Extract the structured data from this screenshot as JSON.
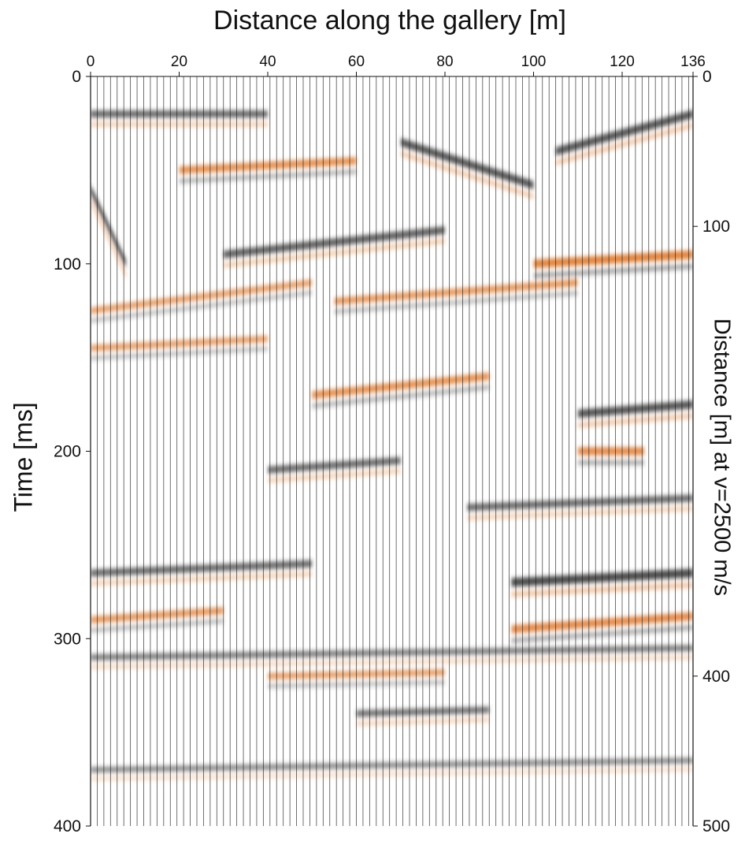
{
  "chart_data": {
    "type": "heatmap",
    "subtype": "seismic wiggle section (variable area, orange/grey)",
    "title": "",
    "xlabel": "Distance along the gallery [m]",
    "ylabel": "Time [ms]",
    "y2label": "Distance [m] at v=2500 m/s",
    "xlim": [
      0,
      136
    ],
    "ylim": [
      0,
      400
    ],
    "y2lim": [
      0,
      500
    ],
    "x_ticks": [
      "0",
      "20",
      "40",
      "60",
      "80",
      "100",
      "120",
      "136"
    ],
    "x_tick_values": [
      0,
      20,
      40,
      60,
      80,
      100,
      120,
      136
    ],
    "y_ticks": [
      "0",
      "100",
      "200",
      "300",
      "400"
    ],
    "y_tick_values": [
      0,
      100,
      200,
      300,
      400
    ],
    "y2_ticks": [
      "0",
      "100",
      "400",
      "500"
    ],
    "y2_tick_values": [
      0,
      100,
      400,
      500
    ],
    "trace_spacing_m": 1.5,
    "colors": {
      "positive": "#e07a2e",
      "negative": "#3a3a3a",
      "trace_line": "#111111",
      "background": "#ffffff"
    },
    "reflectors": [
      {
        "x0": 0,
        "x1": 40,
        "t0": 20,
        "t1": 20,
        "polarity": "negative",
        "strength": 0.7
      },
      {
        "x0": 20,
        "x1": 60,
        "t0": 50,
        "t1": 45,
        "polarity": "positive",
        "strength": 0.8
      },
      {
        "x0": 70,
        "x1": 100,
        "t0": 35,
        "t1": 58,
        "polarity": "negative",
        "strength": 0.9
      },
      {
        "x0": 105,
        "x1": 136,
        "t0": 40,
        "t1": 20,
        "polarity": "negative",
        "strength": 0.9
      },
      {
        "x0": 0,
        "x1": 8,
        "t0": 60,
        "t1": 100,
        "polarity": "negative",
        "strength": 1.0
      },
      {
        "x0": 30,
        "x1": 80,
        "t0": 95,
        "t1": 82,
        "polarity": "negative",
        "strength": 0.8
      },
      {
        "x0": 100,
        "x1": 136,
        "t0": 100,
        "t1": 95,
        "polarity": "positive",
        "strength": 1.0
      },
      {
        "x0": 0,
        "x1": 50,
        "t0": 125,
        "t1": 110,
        "polarity": "positive",
        "strength": 0.6
      },
      {
        "x0": 55,
        "x1": 110,
        "t0": 120,
        "t1": 110,
        "polarity": "positive",
        "strength": 0.7
      },
      {
        "x0": 0,
        "x1": 40,
        "t0": 145,
        "t1": 140,
        "polarity": "positive",
        "strength": 0.6
      },
      {
        "x0": 50,
        "x1": 90,
        "t0": 170,
        "t1": 160,
        "polarity": "positive",
        "strength": 0.8
      },
      {
        "x0": 110,
        "x1": 136,
        "t0": 180,
        "t1": 175,
        "polarity": "negative",
        "strength": 0.9
      },
      {
        "x0": 40,
        "x1": 70,
        "t0": 210,
        "t1": 205,
        "polarity": "negative",
        "strength": 0.7
      },
      {
        "x0": 110,
        "x1": 125,
        "t0": 200,
        "t1": 200,
        "polarity": "positive",
        "strength": 0.9
      },
      {
        "x0": 85,
        "x1": 136,
        "t0": 230,
        "t1": 225,
        "polarity": "negative",
        "strength": 0.7
      },
      {
        "x0": 0,
        "x1": 50,
        "t0": 265,
        "t1": 260,
        "polarity": "negative",
        "strength": 0.7
      },
      {
        "x0": 95,
        "x1": 136,
        "t0": 270,
        "t1": 265,
        "polarity": "negative",
        "strength": 1.0
      },
      {
        "x0": 0,
        "x1": 30,
        "t0": 290,
        "t1": 285,
        "polarity": "positive",
        "strength": 0.7
      },
      {
        "x0": 95,
        "x1": 136,
        "t0": 295,
        "t1": 288,
        "polarity": "positive",
        "strength": 0.9
      },
      {
        "x0": 0,
        "x1": 136,
        "t0": 310,
        "t1": 305,
        "polarity": "negative",
        "strength": 0.5
      },
      {
        "x0": 40,
        "x1": 80,
        "t0": 320,
        "t1": 318,
        "polarity": "positive",
        "strength": 0.6
      },
      {
        "x0": 60,
        "x1": 90,
        "t0": 340,
        "t1": 338,
        "polarity": "negative",
        "strength": 0.6
      },
      {
        "x0": 0,
        "x1": 136,
        "t0": 370,
        "t1": 365,
        "polarity": "negative",
        "strength": 0.4
      }
    ]
  }
}
